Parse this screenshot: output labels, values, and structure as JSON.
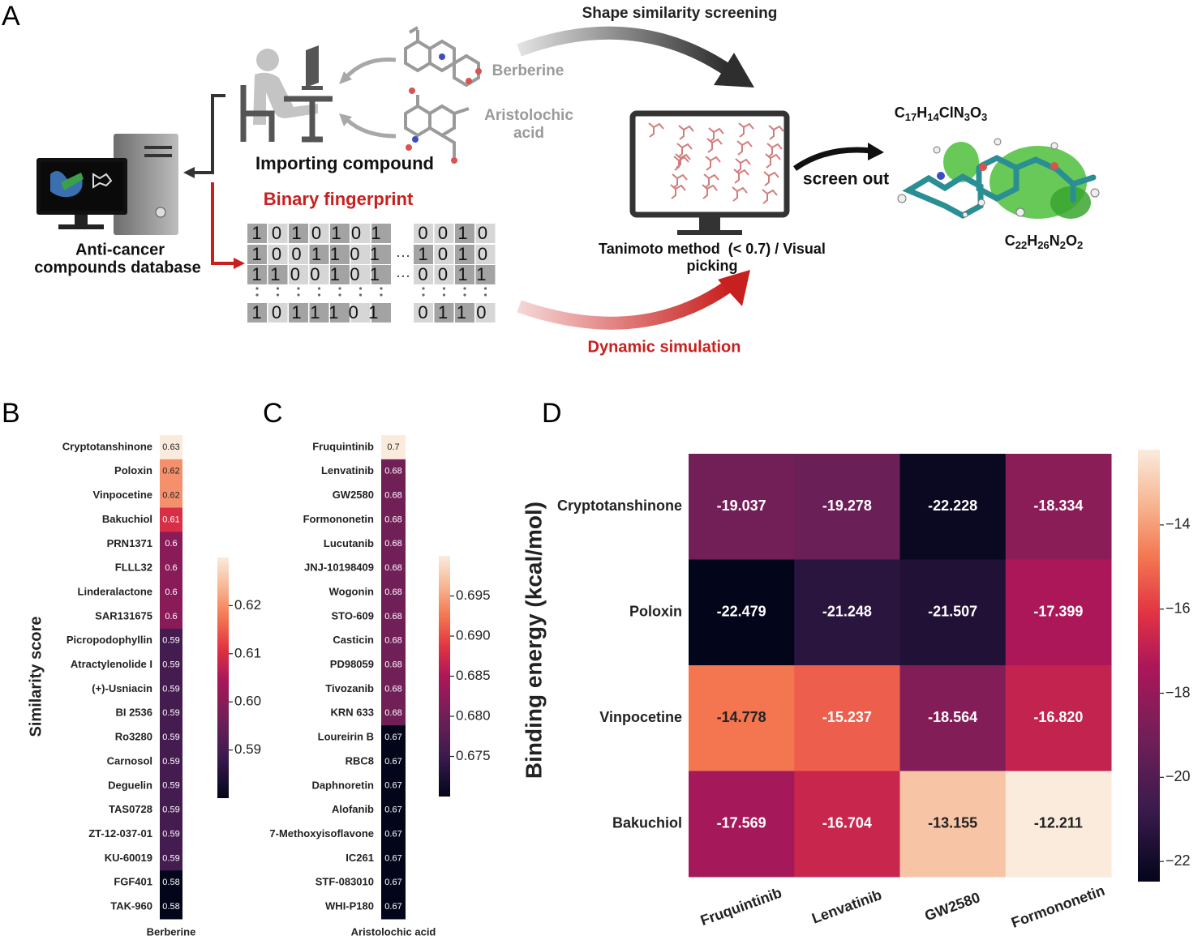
{
  "panel_labels": [
    "A",
    "B",
    "C",
    "D"
  ],
  "diagram": {
    "shape_screening": "Shape similarity screening",
    "query_1": "Berberine",
    "query_2": [
      "Aristolochic",
      "acid"
    ],
    "importing": "Importing compound",
    "fingerprint_title": "Binary fingerprint",
    "database": [
      "Anti-cancer",
      "compounds database"
    ],
    "fingerprint_rows": [
      {
        "left": "1010101",
        "right": "0010"
      },
      {
        "left": "1001101",
        "gap": "···",
        "right": "1010"
      },
      {
        "left": "1100101",
        "gap": "···",
        "right": "0011"
      },
      {
        "left": "1011101",
        "right": "0110"
      }
    ],
    "tanimoto": [
      "Tanimoto method  (< 0.7) / Visual",
      "picking"
    ],
    "screen_out": "screen out",
    "formula_1": [
      "C",
      "17",
      "H",
      "14",
      "ClN",
      "3",
      "O",
      "3"
    ],
    "formula_2": [
      "C",
      "22",
      "H",
      "26",
      "N",
      "2",
      "O",
      "2"
    ],
    "dynamic": "Dynamic simulation"
  },
  "colormap": [
    {
      "at": 0,
      "color": "#03051a"
    },
    {
      "at": 0.17,
      "color": "#3b1b4e"
    },
    {
      "at": 0.33,
      "color": "#701f57"
    },
    {
      "at": 0.5,
      "color": "#ad1759"
    },
    {
      "at": 0.62,
      "color": "#e13342"
    },
    {
      "at": 0.75,
      "color": "#f37651"
    },
    {
      "at": 0.87,
      "color": "#f6b48f"
    },
    {
      "at": 1,
      "color": "#faebdd"
    }
  ],
  "chart_data": [
    {
      "type": "heatmap",
      "y_label": "Similarity score",
      "x_label": "Berberine",
      "categories": [
        "Cryptotanshinone",
        "Poloxin",
        "Vinpocetine",
        "Bakuchiol",
        "PRN1371",
        "FLLL32",
        "Linderalactone",
        "SAR131675",
        "Picropodophyllin",
        "Atractylenolide I",
        "(+)-Usniacin",
        "BI 2536",
        "Ro3280",
        "Carnosol",
        "Deguelin",
        "TAS0728",
        "ZT-12-037-01",
        "KU-60019",
        "FGF401",
        "TAK-960"
      ],
      "values": [
        0.63,
        0.62,
        0.62,
        0.61,
        0.6,
        0.6,
        0.6,
        0.6,
        0.59,
        0.59,
        0.59,
        0.59,
        0.59,
        0.59,
        0.59,
        0.59,
        0.59,
        0.59,
        0.58,
        0.58
      ],
      "zlim": [
        0.58,
        0.63
      ],
      "zticks": [
        0.59,
        {
          "value": 0.6,
          "label": "0.60"
        },
        0.61,
        0.62
      ]
    },
    {
      "type": "heatmap",
      "x_label": "Aristolochic acid",
      "categories": [
        "Fruquintinib",
        "Lenvatinib",
        "GW2580",
        "Formononetin",
        "Lucutanib",
        "JNJ-10198409",
        "Wogonin",
        "STO-609",
        "Casticin",
        "PD98059",
        "Tivozanib",
        "KRN 633",
        "Loureirin B",
        "RBC8",
        "Daphnoretin",
        "Alofanib",
        "7-Methoxyisoflavone",
        "IC261",
        "STF-083010",
        "WHI-P180"
      ],
      "values": [
        0.7,
        0.68,
        0.68,
        0.68,
        0.68,
        0.68,
        0.68,
        0.68,
        0.68,
        0.68,
        0.68,
        0.68,
        0.67,
        0.67,
        0.67,
        0.67,
        0.67,
        0.67,
        0.67,
        0.67
      ],
      "zlim": [
        0.67,
        0.7
      ],
      "zticks": [
        0.675,
        {
          "value": 0.68,
          "label": "0.680"
        },
        0.685,
        {
          "value": 0.69,
          "label": "0.690"
        },
        0.695
      ]
    },
    {
      "type": "heatmap",
      "y_label": "Binding energy (kcal/mol)",
      "categories": [
        "Fruquintinib",
        "Lenvatinib",
        "GW2580",
        "Formononetin"
      ],
      "series": [
        {
          "name": "Cryptotanshinone",
          "values": [
            -19.037,
            -19.278,
            -22.228,
            -18.334
          ]
        },
        {
          "name": "Poloxin",
          "values": [
            -22.479,
            -21.248,
            -21.507,
            -17.399
          ]
        },
        {
          "name": "Vinpocetine",
          "values": [
            -14.778,
            -15.237,
            -18.564,
            -16.82
          ],
          "value_labels": [
            "-14.778",
            "-15.237",
            "-18.564",
            "-16.820"
          ]
        },
        {
          "name": "Bakuchiol",
          "values": [
            -17.569,
            -16.704,
            -13.155,
            -12.211
          ]
        }
      ],
      "zlim": [
        -22.479,
        -12.211
      ],
      "zticks": [
        {
          "value": -22,
          "label": "−22"
        },
        {
          "value": -20,
          "label": "−20"
        },
        {
          "value": -18,
          "label": "−18"
        },
        {
          "value": -16,
          "label": "−16"
        },
        {
          "value": -14,
          "label": "−14"
        }
      ]
    }
  ]
}
